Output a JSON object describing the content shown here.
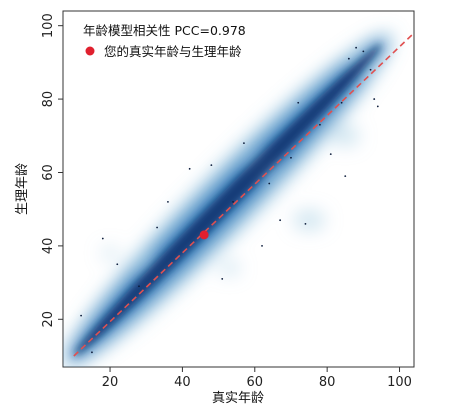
{
  "chart_data": {
    "type": "scatter",
    "title": "",
    "xlabel": "真实年龄",
    "ylabel": "生理年龄",
    "xlim": [
      7,
      104
    ],
    "ylim": [
      7,
      104
    ],
    "xticks": [
      20,
      40,
      60,
      80,
      100
    ],
    "yticks": [
      20,
      40,
      60,
      80,
      100
    ],
    "grid": false,
    "annotation": "年龄模型相关性 PCC=0.978",
    "legend": {
      "position": "top-left",
      "entries": [
        {
          "label": "您的真实年龄与生理年龄",
          "color": "#e0202e",
          "marker": "circle"
        }
      ]
    },
    "series": [
      {
        "name": "您的真实年龄与生理年龄",
        "color": "#e0202e",
        "points": [
          {
            "x": 46,
            "y": 43
          }
        ]
      }
    ],
    "density_color": "#08306b",
    "reference_line": {
      "from": [
        10,
        10
      ],
      "to": [
        104,
        98
      ],
      "color": "#e05050",
      "style": "dashed"
    },
    "sample_points_visible": [
      {
        "x": 12,
        "y": 21
      },
      {
        "x": 18,
        "y": 42
      },
      {
        "x": 22,
        "y": 35
      },
      {
        "x": 33,
        "y": 45
      },
      {
        "x": 36,
        "y": 52
      },
      {
        "x": 42,
        "y": 61
      },
      {
        "x": 48,
        "y": 62
      },
      {
        "x": 51,
        "y": 31
      },
      {
        "x": 54,
        "y": 52
      },
      {
        "x": 62,
        "y": 40
      },
      {
        "x": 64,
        "y": 57
      },
      {
        "x": 67,
        "y": 47
      },
      {
        "x": 70,
        "y": 64
      },
      {
        "x": 72,
        "y": 79
      },
      {
        "x": 74,
        "y": 46
      },
      {
        "x": 78,
        "y": 73
      },
      {
        "x": 81,
        "y": 65
      },
      {
        "x": 84,
        "y": 79
      },
      {
        "x": 86,
        "y": 91
      },
      {
        "x": 88,
        "y": 94
      },
      {
        "x": 90,
        "y": 93
      },
      {
        "x": 92,
        "y": 88
      },
      {
        "x": 93,
        "y": 80
      },
      {
        "x": 94,
        "y": 78
      },
      {
        "x": 85,
        "y": 59
      },
      {
        "x": 57,
        "y": 68
      },
      {
        "x": 28,
        "y": 29
      },
      {
        "x": 15,
        "y": 11
      }
    ]
  }
}
